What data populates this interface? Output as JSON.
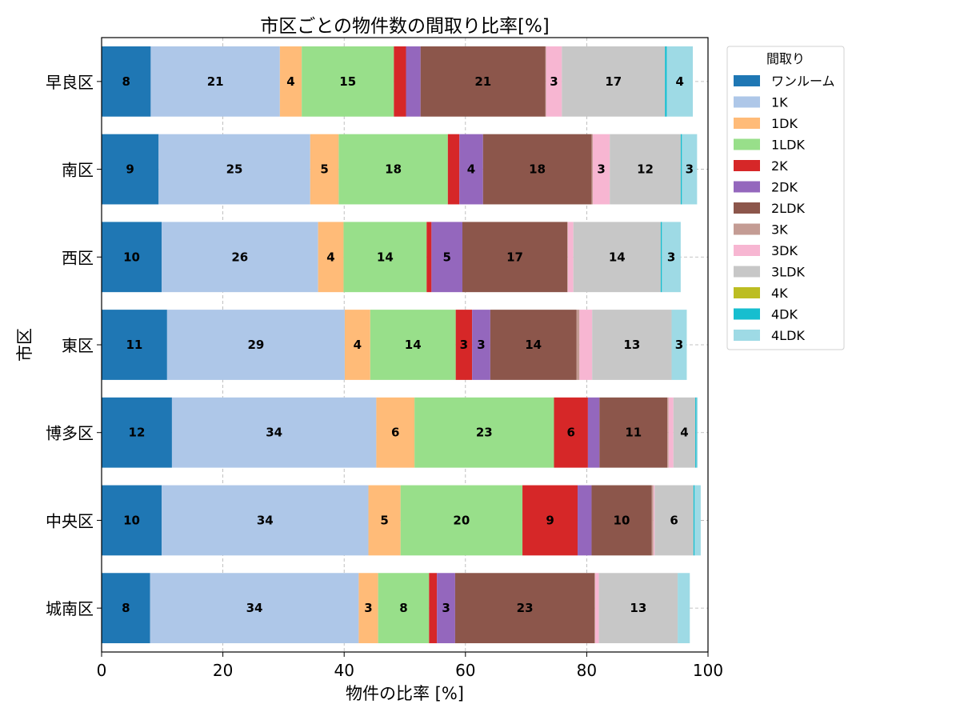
{
  "chart_data": {
    "type": "bar",
    "orientation": "horizontal",
    "stacked": true,
    "title": "市区ごとの物件数の間取り比率[%]",
    "xlabel": "物件の比率 [%]",
    "ylabel": "市区",
    "xlim": [
      0,
      100
    ],
    "xticks": [
      "0",
      "20",
      "40",
      "60",
      "80",
      "100"
    ],
    "grid": true,
    "legend_title": "間取り",
    "legend_position": "outside-top-right",
    "categories": [
      "早良区",
      "南区",
      "西区",
      "東区",
      "博多区",
      "中央区",
      "城南区"
    ],
    "series": [
      {
        "name": "ワンルーム",
        "color": "#1f77b4",
        "values": [
          8.1,
          9.4,
          9.9,
          10.8,
          11.6,
          9.9,
          8.0
        ]
      },
      {
        "name": "1K",
        "color": "#aec7e8",
        "values": [
          21.3,
          25.0,
          25.8,
          29.3,
          33.7,
          34.1,
          34.4
        ]
      },
      {
        "name": "1DK",
        "color": "#ffbb78",
        "values": [
          3.6,
          4.7,
          4.2,
          4.2,
          6.3,
          5.3,
          3.2
        ]
      },
      {
        "name": "1LDK",
        "color": "#98df8a",
        "values": [
          15.2,
          18.0,
          13.7,
          14.1,
          23.0,
          20.1,
          8.4
        ]
      },
      {
        "name": "2K",
        "color": "#d62728",
        "values": [
          2.0,
          1.9,
          0.8,
          2.7,
          5.6,
          9.1,
          1.3
        ]
      },
      {
        "name": "2DK",
        "color": "#9467bd",
        "values": [
          2.4,
          3.9,
          5.1,
          3.0,
          1.9,
          2.3,
          3.0
        ]
      },
      {
        "name": "2LDK",
        "color": "#8c564b",
        "values": [
          20.6,
          17.9,
          17.3,
          14.2,
          11.2,
          9.9,
          23.0
        ]
      },
      {
        "name": "3K",
        "color": "#c49c94",
        "values": [
          0.1,
          0.2,
          0.1,
          0.5,
          0.2,
          0.3,
          0.1
        ]
      },
      {
        "name": "3DK",
        "color": "#f7b6d2",
        "values": [
          2.6,
          2.8,
          0.9,
          2.1,
          0.8,
          0.2,
          0.6
        ]
      },
      {
        "name": "3LDK",
        "color": "#c7c7c7",
        "values": [
          17.0,
          11.7,
          14.4,
          13.1,
          3.6,
          6.4,
          13.0
        ]
      },
      {
        "name": "4K",
        "color": "#bcbd22",
        "values": [
          0.0,
          0.0,
          0.0,
          0.0,
          0.0,
          0.0,
          0.0
        ]
      },
      {
        "name": "4DK",
        "color": "#17becf",
        "values": [
          0.3,
          0.2,
          0.2,
          0.0,
          0.2,
          0.2,
          0.0
        ]
      },
      {
        "name": "4LDK",
        "color": "#9edae5",
        "values": [
          4.3,
          2.5,
          3.1,
          2.5,
          0.2,
          1.0,
          2.0
        ]
      }
    ],
    "label_threshold": 3
  }
}
